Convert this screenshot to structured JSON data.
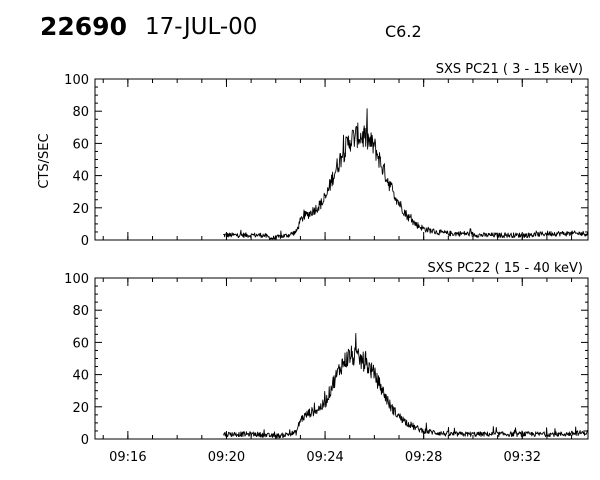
{
  "header": {
    "event_number": "22690",
    "date": "17-JUL-00",
    "flare_class": "C6.2"
  },
  "chart_data": [
    {
      "type": "line",
      "title": "SXS PC21  (  3 - 15 keV)",
      "xlabel": "",
      "ylabel": "CTS/SEC",
      "ylim": [
        0,
        100
      ],
      "yticks": [
        0,
        20,
        40,
        60,
        80,
        100
      ],
      "xlim": [
        "09:14:40",
        "09:34:40"
      ],
      "xticks": [
        "09:16",
        "09:20",
        "09:24",
        "09:28",
        "09:32"
      ],
      "grid": false,
      "x_unit": "time UT",
      "series": [
        {
          "x": [
            "09:19:52",
            "09:20:30",
            "09:21:10",
            "09:21:30",
            "09:21:50",
            "09:22:10",
            "09:22:30",
            "09:22:50",
            "09:23:00",
            "09:23:10",
            "09:23:20",
            "09:23:40",
            "09:24:00",
            "09:24:20",
            "09:24:40",
            "09:25:00",
            "09:25:20",
            "09:25:40",
            "09:26:00",
            "09:26:20",
            "09:26:40",
            "09:27:00",
            "09:27:20",
            "09:27:40",
            "09:28:00",
            "09:28:30",
            "09:29:00",
            "09:29:40",
            "09:30:20",
            "09:31:00",
            "09:31:40",
            "09:32:20",
            "09:33:00",
            "09:33:40",
            "09:34:40"
          ],
          "values": [
            3,
            3,
            3,
            3,
            1,
            2,
            3,
            5,
            12,
            15,
            16,
            20,
            25,
            40,
            52,
            62,
            65,
            63,
            58,
            45,
            33,
            23,
            15,
            10,
            7,
            5,
            4,
            4,
            3,
            3,
            3,
            3,
            4,
            4,
            4
          ]
        }
      ]
    },
    {
      "type": "line",
      "title": "SXS PC22  ( 15 - 40 keV)",
      "xlabel": "",
      "ylabel": "",
      "ylim": [
        0,
        100
      ],
      "yticks": [
        0,
        20,
        40,
        60,
        80,
        100
      ],
      "xlim": [
        "09:14:40",
        "09:34:40"
      ],
      "xticks": [
        "09:16",
        "09:20",
        "09:24",
        "09:28",
        "09:32"
      ],
      "grid": false,
      "x_unit": "time UT",
      "series": [
        {
          "x": [
            "09:19:52",
            "09:20:30",
            "09:21:10",
            "09:21:50",
            "09:22:10",
            "09:22:30",
            "09:22:50",
            "09:23:00",
            "09:23:20",
            "09:23:40",
            "09:24:00",
            "09:24:20",
            "09:24:40",
            "09:25:00",
            "09:25:20",
            "09:25:40",
            "09:26:00",
            "09:26:20",
            "09:26:40",
            "09:27:00",
            "09:27:20",
            "09:27:40",
            "09:28:00",
            "09:28:30",
            "09:29:00",
            "09:29:40",
            "09:30:20",
            "09:31:00",
            "09:31:40",
            "09:32:20",
            "09:33:00",
            "09:33:40",
            "09:34:40"
          ],
          "values": [
            3,
            3,
            3,
            2,
            2,
            3,
            4,
            12,
            16,
            18,
            22,
            35,
            46,
            52,
            50,
            47,
            40,
            30,
            20,
            14,
            10,
            7,
            5,
            4,
            3,
            3,
            3,
            3,
            3,
            3,
            3,
            3,
            4
          ]
        }
      ]
    }
  ]
}
